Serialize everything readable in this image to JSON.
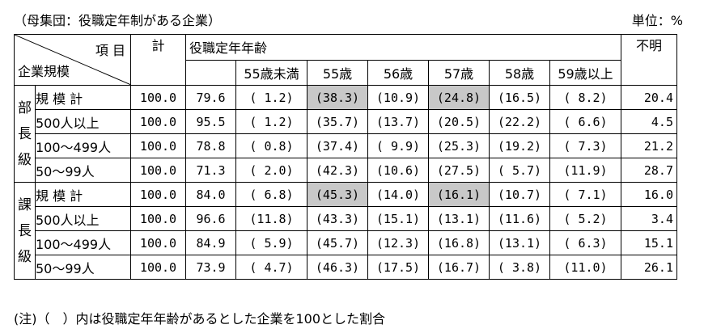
{
  "caption": "（母集団：役職定年制がある企業）",
  "unit": "単位：%",
  "header": {
    "item": "項 目",
    "size": "企業規模",
    "total": "計",
    "age_group": "役職定年年齢",
    "unknown": "不明",
    "ages": [
      "55歳未満",
      "55歳",
      "56歳",
      "57歳",
      "58歳",
      "59歳以上"
    ]
  },
  "groups": [
    {
      "label": [
        "部",
        "長",
        "級"
      ],
      "rows": [
        {
          "label": "規 模 計",
          "total": "100.0",
          "rate": "79.6",
          "ages": [
            "( 1.2)",
            "(38.3)",
            "(10.9)",
            "(24.8)",
            "(16.5)",
            "( 8.2)"
          ],
          "unknown": "20.4"
        },
        {
          "label": "500人以上",
          "total": "100.0",
          "rate": "95.5",
          "ages": [
            "( 1.2)",
            "(35.7)",
            "(13.7)",
            "(20.5)",
            "(22.2)",
            "( 6.6)"
          ],
          "unknown": "4.5"
        },
        {
          "label": "100～499人",
          "total": "100.0",
          "rate": "78.8",
          "ages": [
            "( 0.8)",
            "(37.4)",
            "( 9.9)",
            "(25.3)",
            "(19.2)",
            "( 7.3)"
          ],
          "unknown": "21.2"
        },
        {
          "label": "50～99人",
          "total": "100.0",
          "rate": "71.3",
          "ages": [
            "( 2.0)",
            "(42.3)",
            "(10.6)",
            "(27.5)",
            "( 5.7)",
            "(11.9)"
          ],
          "unknown": "28.7"
        }
      ]
    },
    {
      "label": [
        "課",
        "長",
        "級"
      ],
      "rows": [
        {
          "label": "規 模 計",
          "total": "100.0",
          "rate": "84.0",
          "ages": [
            "( 6.8)",
            "(45.3)",
            "(14.0)",
            "(16.1)",
            "(10.7)",
            "( 7.1)"
          ],
          "unknown": "16.0"
        },
        {
          "label": "500人以上",
          "total": "100.0",
          "rate": "96.6",
          "ages": [
            "(11.8)",
            "(43.3)",
            "(15.1)",
            "(13.1)",
            "(11.6)",
            "( 5.2)"
          ],
          "unknown": "3.4"
        },
        {
          "label": "100～499人",
          "total": "100.0",
          "rate": "84.9",
          "ages": [
            "( 5.9)",
            "(45.7)",
            "(12.3)",
            "(16.8)",
            "(13.1)",
            "( 6.3)"
          ],
          "unknown": "15.1"
        },
        {
          "label": "50～99人",
          "total": "100.0",
          "rate": "73.9",
          "ages": [
            "( 4.7)",
            "(46.3)",
            "(17.5)",
            "(16.7)",
            "( 3.8)",
            "(11.0)"
          ],
          "unknown": "26.1"
        }
      ]
    }
  ],
  "highlight_color": "#c8c8c8",
  "footnote": "(注)（　）内は役職定年年齢があるとした企業を100とした割合"
}
